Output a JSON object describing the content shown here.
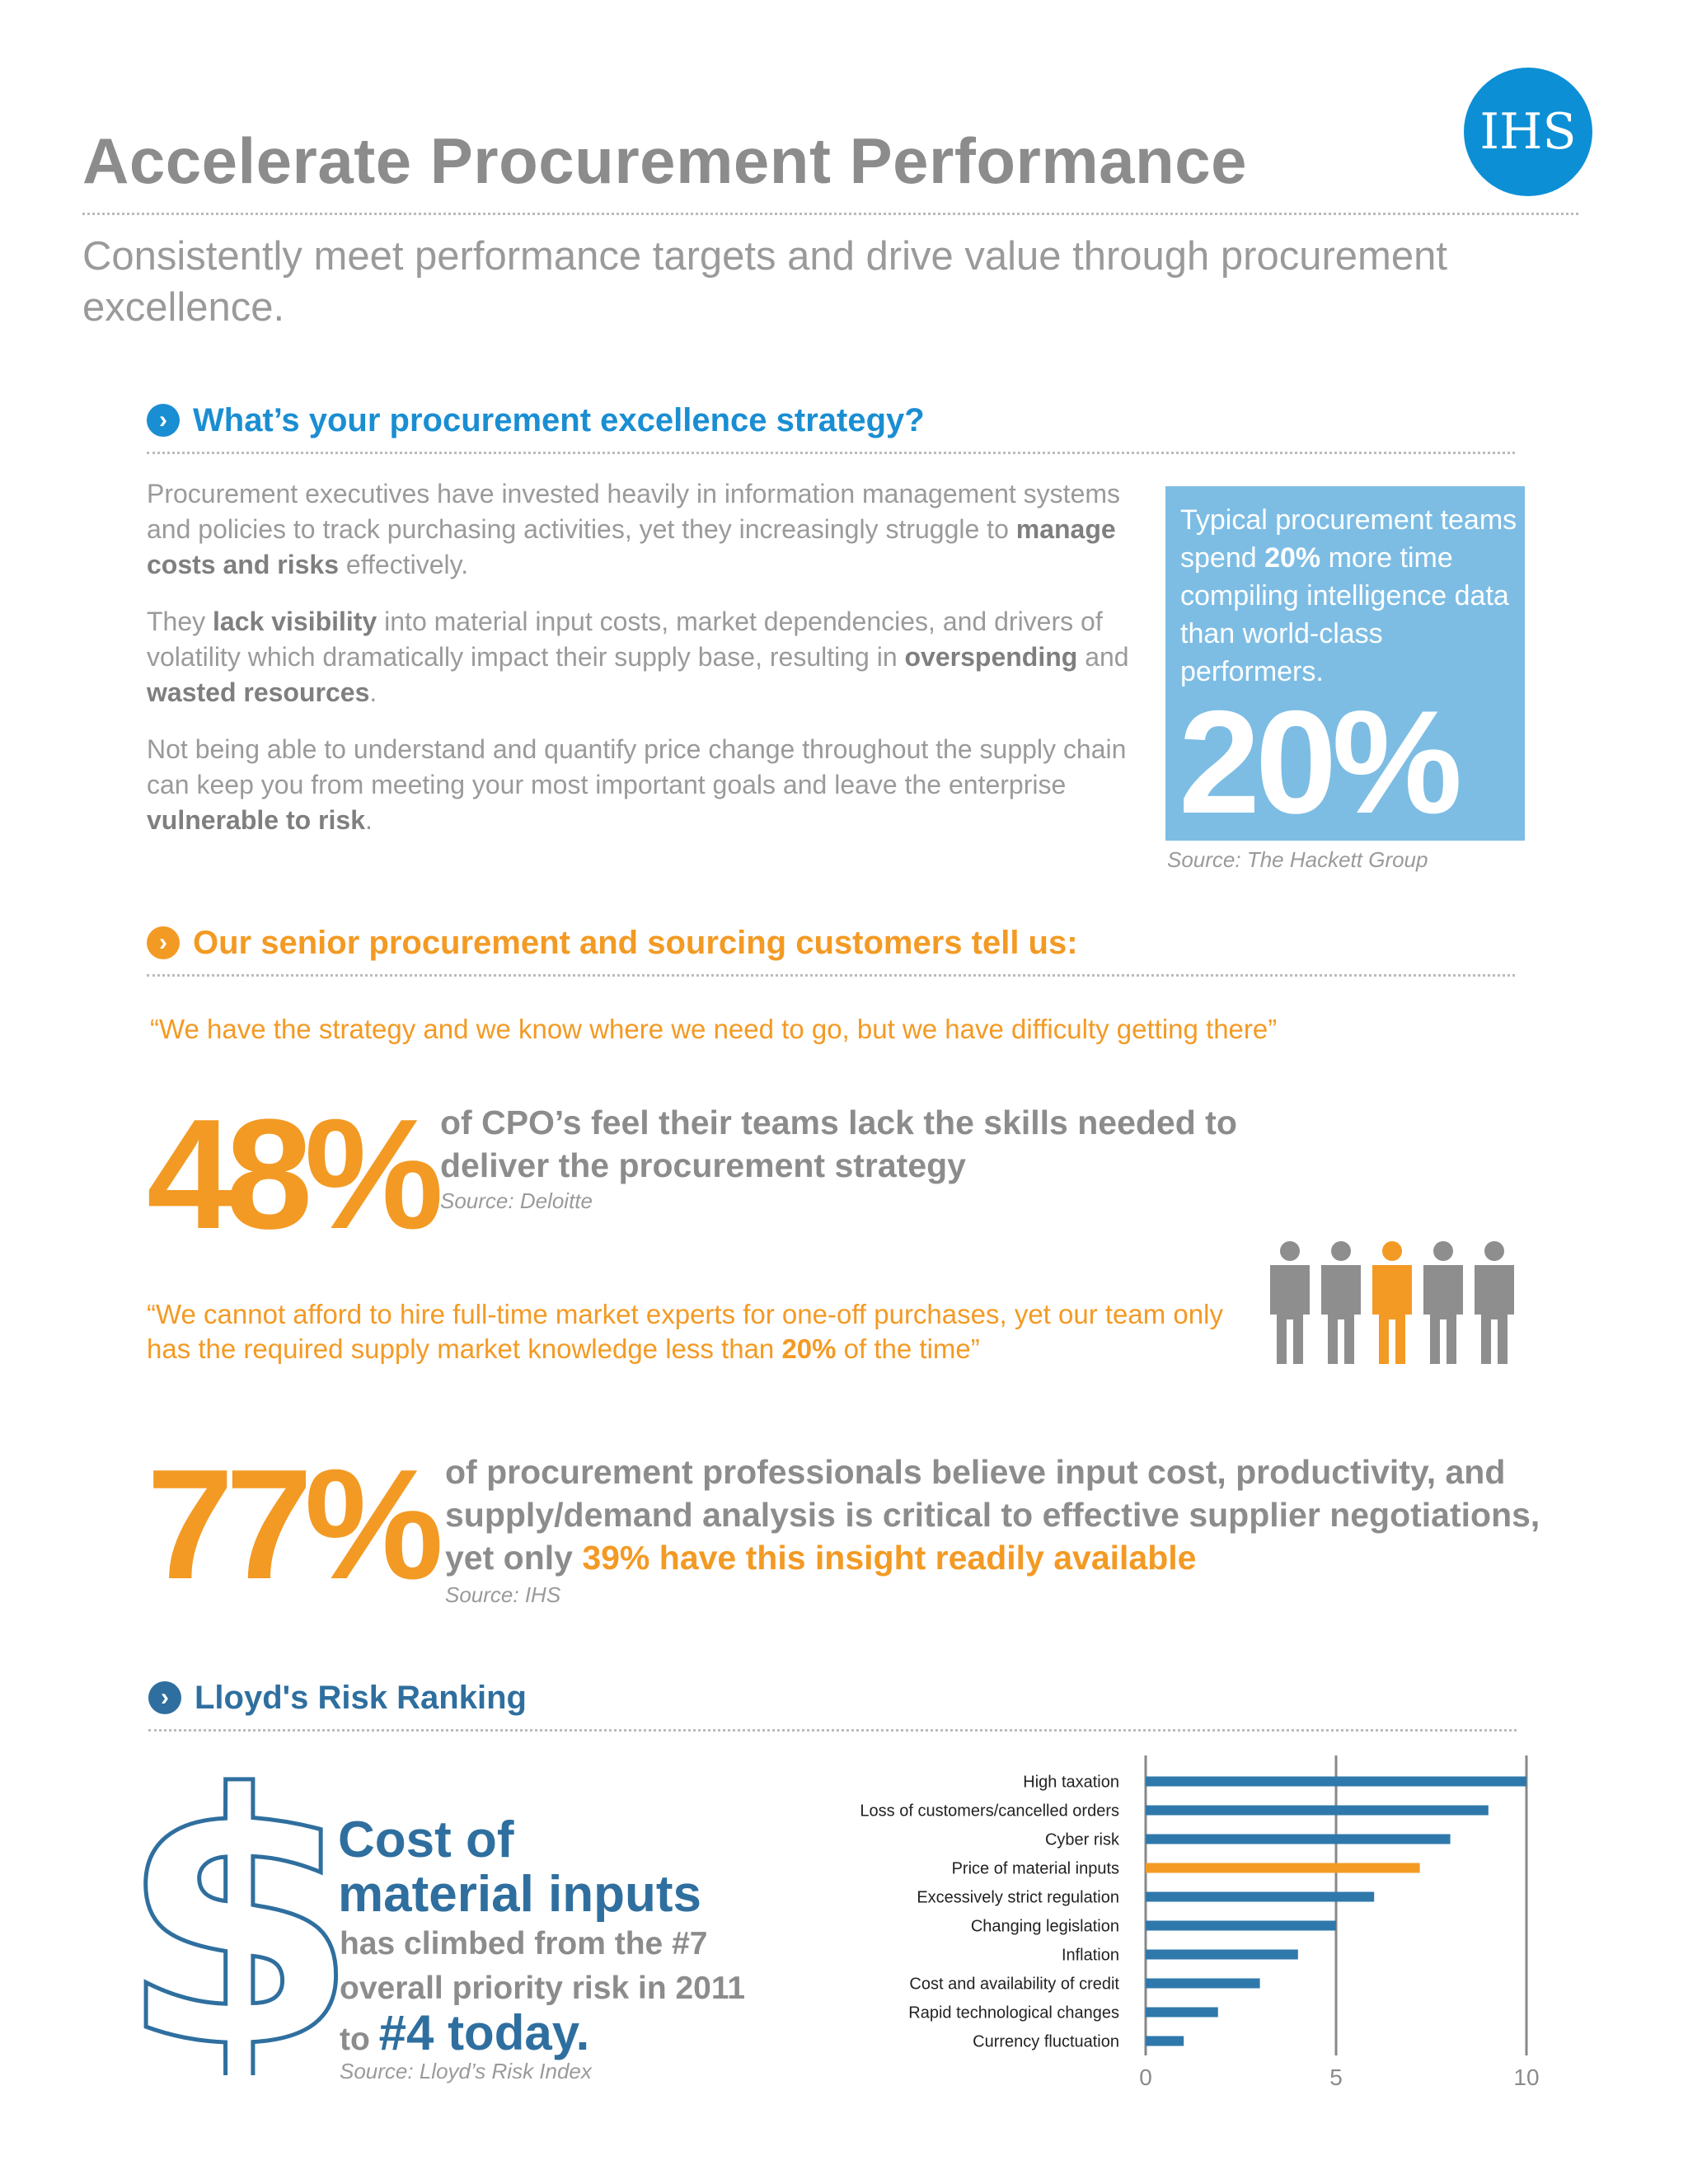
{
  "header": {
    "title": "Accelerate Procurement Performance",
    "subtitle": "Consistently meet performance targets and drive value through procurement excellence.",
    "logo_text": "IHS"
  },
  "strategy": {
    "heading": "What’s your procurement excellence strategy?",
    "p1_a": "Procurement executives have invested heavily in information management systems and policies to track purchasing activities, yet they increasingly struggle to ",
    "p1_b": "manage costs and risks",
    "p1_c": " effectively.",
    "p2_a": "They ",
    "p2_b": "lack visibility",
    "p2_c": " into material input costs, market dependencies, and drivers of volatility which dramatically impact their supply base, resulting in ",
    "p2_d": "overspending",
    "p2_e": " and ",
    "p2_f": "wasted resources",
    "p2_g": ".",
    "p3_a": "Not being able to understand and quantify price change throughout the supply chain can keep you from meeting your most important goals and leave the enterprise ",
    "p3_b": "vulnerable to risk",
    "p3_c": ".",
    "callout_a": "Typical procurement teams spend ",
    "callout_b": "20%",
    "callout_c": " more time compiling intelligence data than world-class performers.",
    "callout_big": "20%",
    "callout_source": "Source: The Hackett Group"
  },
  "customers": {
    "heading": "Our senior procurement and sourcing customers tell us:",
    "quote1": "“We have the strategy and we know where we need to go, but we have difficulty getting there”",
    "stat1_pct": "48%",
    "stat1_text": "of CPO’s feel their teams lack the skills needed to deliver the procurement strategy",
    "stat1_source": "Source: Deloitte",
    "quote2_a": "“We cannot afford to hire full-time market experts for one-off purchases, yet our team only has the required supply market knowledge less than ",
    "quote2_b": "20%",
    "quote2_c": " of the time”",
    "people_highlighted": 1,
    "people_total": 5,
    "stat2_pct": "77%",
    "stat2_text_a": "of procurement professionals believe input cost, productivity, and supply/demand analysis is critical to effective supplier negotiations, yet only ",
    "stat2_text_b": "39% have this insight readily available",
    "stat2_source": "Source: IHS"
  },
  "lloyds": {
    "heading": "Lloyd's Risk Ranking",
    "big_line1": "Cost of",
    "big_line2": "material inputs",
    "sub_a": "has climbed from the #7 overall priority risk in 2011 to ",
    "sub_b": "#4 today.",
    "source": "Source: Lloyd’s Risk Index",
    "dollar_glyph": "$"
  },
  "chart_data": {
    "type": "bar",
    "orientation": "horizontal",
    "categories": [
      "High taxation",
      "Loss of customers/cancelled orders",
      "Cyber risk",
      "Price of material inputs",
      "Excessively strict regulation",
      "Changing legislation",
      "Inflation",
      "Cost and availability of credit",
      "Rapid technological changes",
      "Currency fluctuation"
    ],
    "values": [
      10,
      9,
      8,
      7.2,
      6,
      5,
      4,
      3,
      1.9,
      1
    ],
    "highlight_index": 3,
    "xlim": [
      0,
      10
    ],
    "xticks": [
      "0",
      "5",
      "10"
    ],
    "colors": {
      "bar": "#2f78ab",
      "highlight": "#f39a24",
      "grid": "#888888"
    }
  },
  "colors": {
    "blue": "#1a8ed2",
    "orange": "#f39a24",
    "navy": "#2f6f9f",
    "callout_bg": "#7dbde4",
    "person_gray": "#8e8e8e"
  }
}
